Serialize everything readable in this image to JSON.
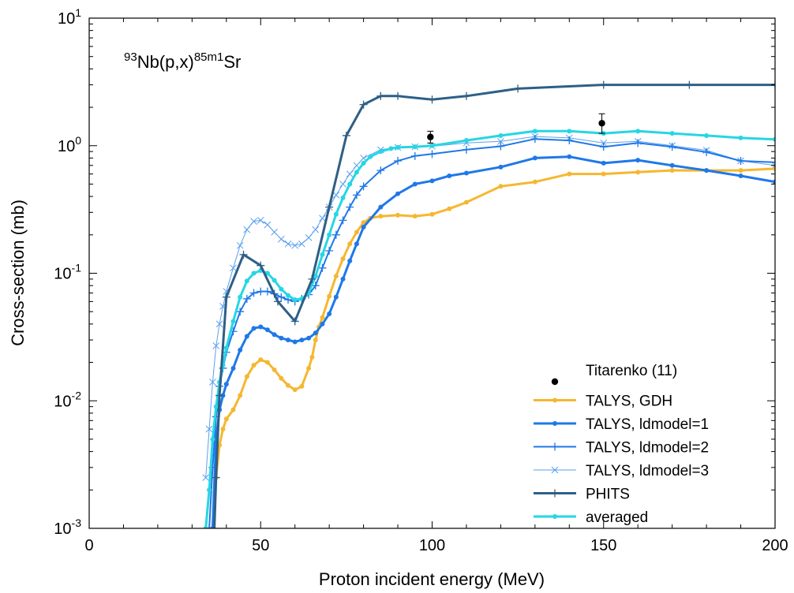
{
  "chart_data": {
    "type": "line",
    "title": "",
    "annotation": {
      "prefix_mass": "93",
      "target": "Nb(p,x)",
      "product_mass": "85m1",
      "product": "Sr"
    },
    "xlabel": "Proton incident energy (MeV)",
    "ylabel": "Cross-section (mb)",
    "xlim": [
      0,
      200
    ],
    "ylim": [
      0.001,
      10
    ],
    "yscale": "log",
    "x_ticks": [
      "0",
      "50",
      "100",
      "150",
      "200"
    ],
    "y_ticks": [
      {
        "base": "10",
        "exp": "-3",
        "value": 0.001
      },
      {
        "base": "10",
        "exp": "-2",
        "value": 0.01
      },
      {
        "base": "10",
        "exp": "-1",
        "value": 0.1
      },
      {
        "base": "10",
        "exp": "0",
        "value": 1
      },
      {
        "base": "10",
        "exp": "1",
        "value": 10
      }
    ],
    "grid": false,
    "legend_position": "bottom-right",
    "series": [
      {
        "name": "Titarenko (11)",
        "kind": "points",
        "color": "#000000",
        "marker": "dot",
        "points": [
          {
            "x": 99.5,
            "y": 1.17,
            "ylo": 1.05,
            "yhi": 1.3
          },
          {
            "x": 149.5,
            "y": 1.5,
            "ylo": 1.25,
            "yhi": 1.78
          }
        ]
      },
      {
        "name": "TALYS, GDH",
        "kind": "line",
        "color": "#f5b731",
        "marker": "dot",
        "x": [
          36,
          37,
          38,
          39,
          40,
          42,
          44,
          46,
          48,
          50,
          52,
          54,
          56,
          58,
          60,
          62,
          64,
          65,
          66,
          67,
          68,
          70,
          72,
          74,
          76,
          78,
          80,
          82,
          85,
          90,
          95,
          100,
          105,
          110,
          120,
          130,
          140,
          150,
          160,
          170,
          180,
          190,
          200
        ],
        "y": [
          0.001,
          0.0025,
          0.0045,
          0.006,
          0.0072,
          0.0085,
          0.011,
          0.0155,
          0.019,
          0.021,
          0.02,
          0.0175,
          0.015,
          0.0132,
          0.0122,
          0.013,
          0.018,
          0.022,
          0.03,
          0.038,
          0.045,
          0.066,
          0.095,
          0.13,
          0.17,
          0.21,
          0.25,
          0.27,
          0.28,
          0.285,
          0.28,
          0.29,
          0.32,
          0.36,
          0.48,
          0.52,
          0.6,
          0.6,
          0.62,
          0.64,
          0.64,
          0.64,
          0.66
        ]
      },
      {
        "name": "TALYS, ldmodel=1",
        "kind": "line",
        "color": "#1f78e8",
        "marker": "dot",
        "x": [
          36,
          37,
          38,
          39,
          40,
          42,
          44,
          46,
          48,
          50,
          52,
          54,
          56,
          58,
          60,
          62,
          64,
          66,
          68,
          70,
          72,
          74,
          76,
          78,
          80,
          85,
          90,
          95,
          100,
          105,
          110,
          120,
          130,
          140,
          150,
          160,
          170,
          180,
          190,
          200
        ],
        "y": [
          0.001,
          0.005,
          0.0085,
          0.011,
          0.0135,
          0.018,
          0.025,
          0.032,
          0.037,
          0.038,
          0.036,
          0.033,
          0.031,
          0.03,
          0.029,
          0.03,
          0.031,
          0.034,
          0.04,
          0.048,
          0.065,
          0.09,
          0.125,
          0.17,
          0.23,
          0.33,
          0.42,
          0.5,
          0.53,
          0.58,
          0.61,
          0.68,
          0.8,
          0.82,
          0.73,
          0.77,
          0.7,
          0.64,
          0.58,
          0.52
        ]
      },
      {
        "name": "TALYS, ldmodel=2",
        "kind": "line",
        "color": "#1f78e8",
        "marker": "plus",
        "x": [
          35,
          36,
          37,
          38,
          39,
          40,
          42,
          44,
          46,
          48,
          50,
          52,
          54,
          56,
          58,
          60,
          62,
          64,
          66,
          68,
          70,
          72,
          74,
          76,
          78,
          80,
          85,
          90,
          95,
          100,
          110,
          120,
          130,
          140,
          150,
          160,
          170,
          180,
          190,
          200
        ],
        "y": [
          0.001,
          0.003,
          0.0075,
          0.013,
          0.018,
          0.024,
          0.035,
          0.05,
          0.063,
          0.07,
          0.072,
          0.072,
          0.069,
          0.065,
          0.062,
          0.06,
          0.063,
          0.068,
          0.08,
          0.11,
          0.15,
          0.2,
          0.26,
          0.33,
          0.41,
          0.48,
          0.64,
          0.76,
          0.83,
          0.86,
          0.93,
          0.99,
          1.13,
          1.1,
          0.98,
          1.05,
          0.98,
          0.89,
          0.76,
          0.74
        ]
      },
      {
        "name": "TALYS, ldmodel=3",
        "kind": "line",
        "color": "#5b9ff0",
        "marker": "cross",
        "x": [
          34,
          35,
          36,
          37,
          38,
          39,
          40,
          42,
          44,
          46,
          48,
          50,
          52,
          54,
          56,
          58,
          60,
          62,
          64,
          66,
          68,
          70,
          72,
          74,
          76,
          78,
          80,
          85,
          90,
          95,
          100,
          110,
          120,
          130,
          140,
          150,
          160,
          170,
          180,
          190,
          200
        ],
        "y": [
          0.0025,
          0.006,
          0.014,
          0.027,
          0.04,
          0.055,
          0.072,
          0.11,
          0.165,
          0.22,
          0.255,
          0.26,
          0.24,
          0.21,
          0.185,
          0.17,
          0.165,
          0.17,
          0.19,
          0.22,
          0.27,
          0.33,
          0.41,
          0.5,
          0.6,
          0.7,
          0.8,
          0.93,
          0.97,
          0.98,
          0.99,
          1.05,
          1.08,
          1.18,
          1.15,
          1.05,
          1.08,
          1.0,
          0.92,
          0.76,
          0.7
        ]
      },
      {
        "name": "PHITS",
        "kind": "line",
        "color": "#2e5f86",
        "marker": "plus",
        "x": [
          36.5,
          37,
          38,
          40,
          45,
          50,
          55,
          60,
          65,
          70,
          75,
          80,
          85,
          90,
          100,
          110,
          125,
          150,
          175,
          200
        ],
        "y": [
          0.001,
          0.0025,
          0.011,
          0.065,
          0.14,
          0.115,
          0.06,
          0.042,
          0.09,
          0.33,
          1.2,
          2.1,
          2.45,
          2.45,
          2.3,
          2.45,
          2.8,
          3.0,
          3.0,
          3.0
        ]
      },
      {
        "name": "averaged",
        "kind": "line",
        "color": "#26d6e3",
        "marker": "dot",
        "x": [
          34,
          35,
          36,
          37,
          38,
          39,
          40,
          42,
          44,
          46,
          48,
          50,
          52,
          54,
          56,
          58,
          60,
          62,
          64,
          66,
          68,
          70,
          72,
          74,
          76,
          78,
          80,
          82,
          85,
          88,
          90,
          95,
          100,
          110,
          120,
          130,
          140,
          150,
          160,
          170,
          180,
          190,
          200
        ],
        "y": [
          0.001,
          0.002,
          0.005,
          0.009,
          0.014,
          0.019,
          0.026,
          0.042,
          0.065,
          0.087,
          0.1,
          0.105,
          0.1,
          0.088,
          0.075,
          0.067,
          0.062,
          0.063,
          0.07,
          0.095,
          0.14,
          0.2,
          0.29,
          0.39,
          0.5,
          0.62,
          0.73,
          0.82,
          0.9,
          0.95,
          0.97,
          0.98,
          1.0,
          1.1,
          1.2,
          1.3,
          1.3,
          1.25,
          1.3,
          1.25,
          1.2,
          1.15,
          1.12
        ]
      }
    ]
  }
}
